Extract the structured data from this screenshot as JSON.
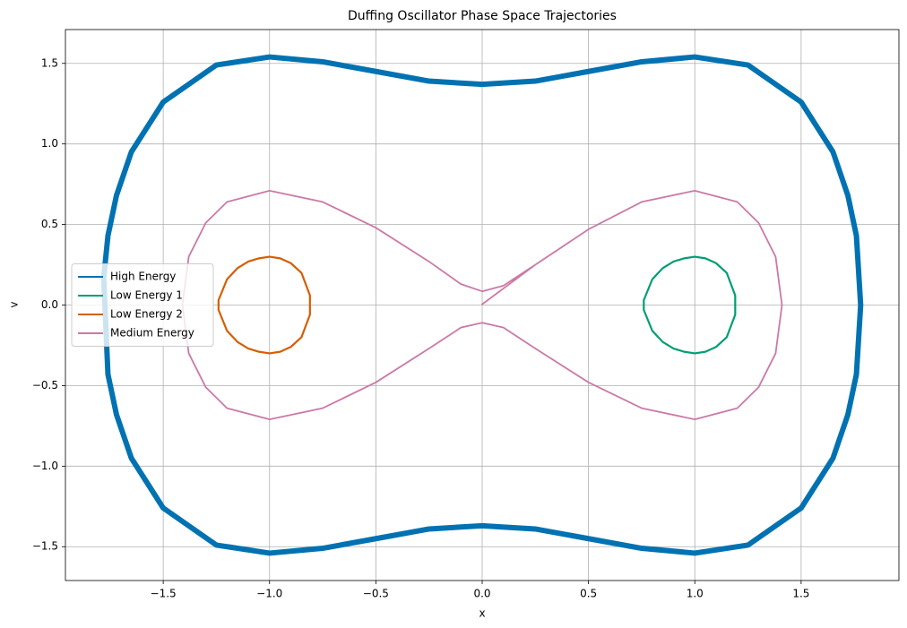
{
  "chart_data": {
    "type": "line",
    "title": "Duffing Oscillator Phase Space Trajectories",
    "x_label": "x",
    "y_label": "v",
    "xlim": [
      -1.96,
      1.96
    ],
    "ylim": [
      -1.71,
      1.71
    ],
    "xticks": [
      {
        "value": -1.5,
        "label": "−1.5"
      },
      {
        "value": -1.0,
        "label": "−1.0"
      },
      {
        "value": -0.5,
        "label": "−0.5"
      },
      {
        "value": 0,
        "label": "0.0"
      },
      0.5,
      {
        "value": 1.0,
        "label": "1.0"
      },
      1.5
    ],
    "yticks": [
      {
        "value": -1.5,
        "label": "−1.5"
      },
      {
        "value": -1.0,
        "label": "−1.0"
      },
      {
        "value": -0.5,
        "label": "−0.5"
      },
      {
        "value": 0,
        "label": "0.0"
      },
      0.5,
      {
        "value": 1.0,
        "label": "1.0"
      },
      1.5
    ],
    "grid": true,
    "legend": "center left",
    "series": [
      {
        "name": "High Energy",
        "color": "#0072b2",
        "line_width": 6,
        "x": [
          -1.78,
          -1.76,
          -1.72,
          -1.65,
          -1.5,
          -1.25,
          -1.0,
          -0.75,
          -0.5,
          -0.25,
          0,
          0.25,
          0.5,
          0.75,
          1.0,
          1.25,
          1.5,
          1.65,
          1.72,
          1.76,
          1.78,
          1.76,
          1.72,
          1.65,
          1.5,
          1.25,
          1.0,
          0.75,
          0.5,
          0.25,
          0,
          -0.25,
          -0.5,
          -0.75,
          -1.0,
          -1.25,
          -1.5,
          -1.65,
          -1.72,
          -1.76,
          -1.78
        ],
        "values": [
          0.17,
          0.43,
          0.68,
          0.95,
          1.26,
          1.49,
          1.54,
          1.51,
          1.45,
          1.39,
          1.37,
          1.39,
          1.45,
          1.51,
          1.54,
          1.49,
          1.26,
          0.95,
          0.68,
          0.43,
          0,
          -0.43,
          -0.68,
          -0.95,
          -1.26,
          -1.49,
          -1.54,
          -1.51,
          -1.45,
          -1.39,
          -1.37,
          -1.39,
          -1.45,
          -1.51,
          -1.54,
          -1.49,
          -1.26,
          -0.95,
          -0.68,
          -0.43,
          0.17
        ]
      },
      {
        "name": "Low Energy 1",
        "color": "#009e73",
        "line_width": 2.2,
        "x": [
          0.76,
          0.8,
          0.85,
          0.9,
          0.95,
          1.0,
          1.05,
          1.1,
          1.15,
          1.19,
          1.19,
          1.15,
          1.1,
          1.05,
          1.0,
          0.95,
          0.9,
          0.85,
          0.8,
          0.76,
          0.76
        ],
        "values": [
          0.03,
          0.16,
          0.23,
          0.27,
          0.29,
          0.3,
          0.29,
          0.26,
          0.2,
          0.06,
          -0.06,
          -0.2,
          -0.26,
          -0.29,
          -0.3,
          -0.29,
          -0.27,
          -0.23,
          -0.16,
          -0.03,
          0.03
        ]
      },
      {
        "name": "Low Energy 2",
        "color": "#d55e00",
        "line_width": 2.2,
        "x": [
          -1.24,
          -1.2,
          -1.15,
          -1.1,
          -1.05,
          -1.0,
          -0.95,
          -0.9,
          -0.85,
          -0.81,
          -0.81,
          -0.85,
          -0.9,
          -0.95,
          -1.0,
          -1.05,
          -1.1,
          -1.15,
          -1.2,
          -1.24,
          -1.24
        ],
        "values": [
          0.03,
          0.16,
          0.23,
          0.27,
          0.29,
          0.3,
          0.29,
          0.26,
          0.2,
          0.06,
          -0.06,
          -0.2,
          -0.26,
          -0.29,
          -0.3,
          -0.29,
          -0.27,
          -0.23,
          -0.16,
          -0.03,
          0.03
        ]
      },
      {
        "name": "Medium Energy",
        "color": "#cc79a7",
        "line_width": 1.8,
        "x": [
          0,
          0.25,
          0.5,
          0.75,
          1.0,
          1.2,
          1.3,
          1.38,
          1.41,
          1.38,
          1.3,
          1.2,
          1.0,
          0.75,
          0.5,
          0.25,
          0.1,
          0,
          -0.1,
          -0.25,
          -0.5,
          -0.75,
          -1.0,
          -1.2,
          -1.3,
          -1.38,
          -1.41,
          -1.38,
          -1.3,
          -1.2,
          -1.0,
          -0.75,
          -0.5,
          -0.25,
          -0.1,
          0,
          0.1,
          0.25,
          0.5,
          0.75,
          1.0
        ],
        "values": [
          0.005,
          0.25,
          0.47,
          0.64,
          0.71,
          0.64,
          0.51,
          0.3,
          0,
          -0.3,
          -0.51,
          -0.64,
          -0.71,
          -0.64,
          -0.48,
          -0.27,
          -0.14,
          -0.11,
          -0.14,
          -0.27,
          -0.48,
          -0.64,
          -0.71,
          -0.64,
          -0.51,
          -0.3,
          0,
          0.3,
          0.51,
          0.64,
          0.71,
          0.64,
          0.48,
          0.27,
          0.13,
          0.085,
          0.12,
          0.25,
          0.47,
          0.64,
          0.71
        ]
      }
    ]
  }
}
